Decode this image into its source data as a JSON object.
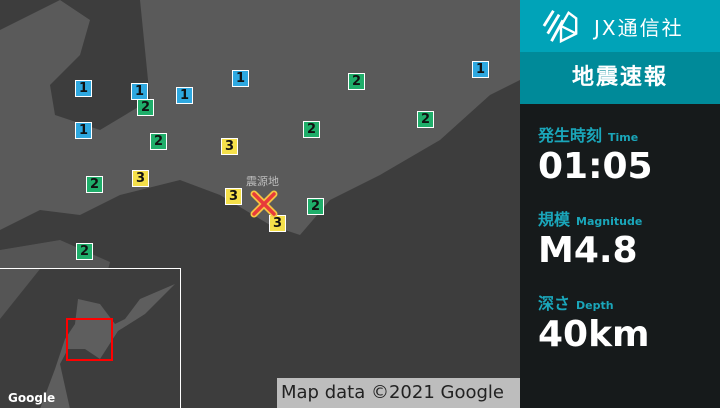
{
  "map": {
    "epicenter_label": "震源地",
    "markers": [
      1,
      1,
      1,
      1,
      1,
      1,
      2,
      2,
      2,
      2,
      2,
      2,
      2,
      2,
      3,
      3,
      3,
      3
    ],
    "intensity_colors": {
      "1": "#2ea8e0",
      "2": "#1fae6a",
      "3": "#f5e04a"
    },
    "attribution": "Map data ©2021 Google",
    "inset_google": "Google"
  },
  "panel": {
    "brand": "JX通信社",
    "title": "地震速報",
    "time_label": "発生時刻",
    "time_label_en": "Time",
    "time": "01:05",
    "magnitude_label": "規模",
    "magnitude_label_en": "Magnitude",
    "magnitude": "M4.8",
    "depth_label": "深さ",
    "depth_label_en": "Depth",
    "depth": "40km"
  }
}
